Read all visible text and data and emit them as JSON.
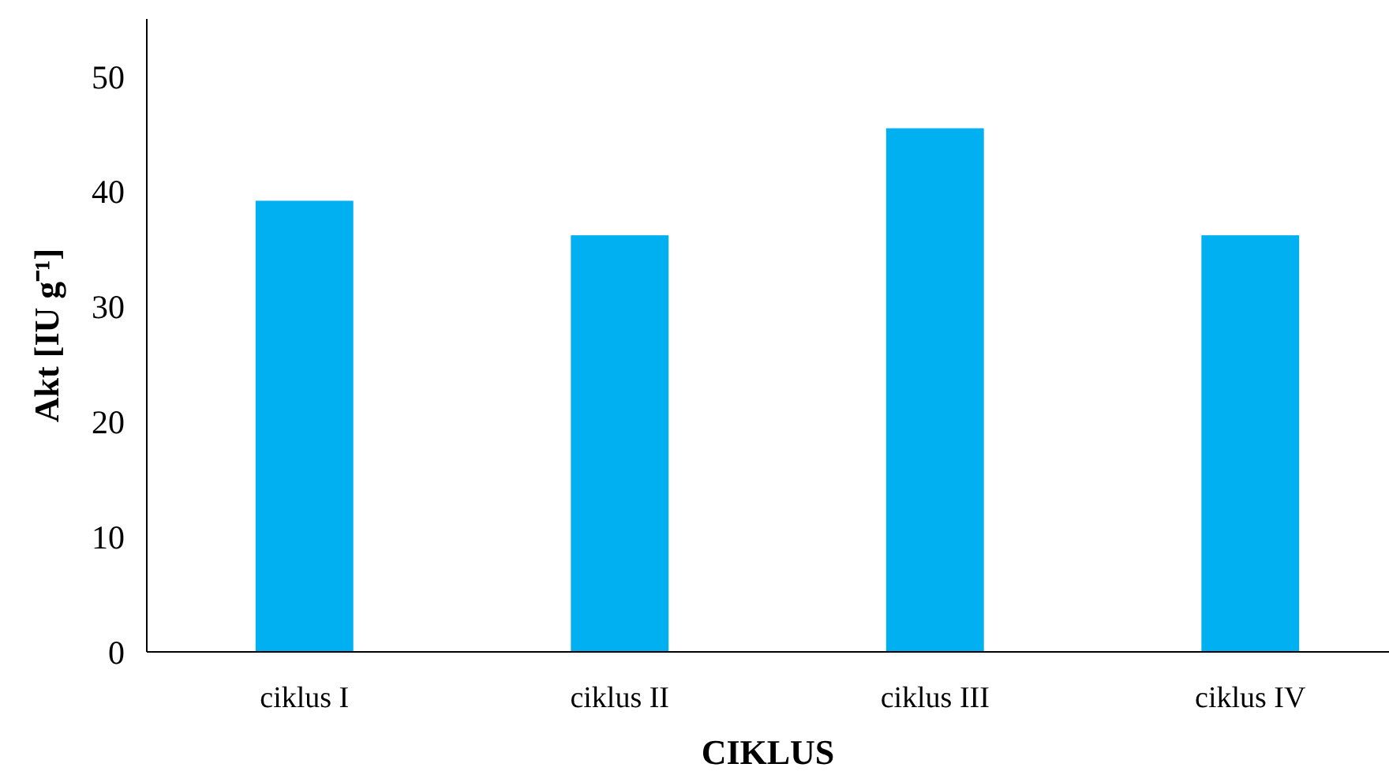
{
  "chart_data": {
    "type": "bar",
    "xlabel": "CIKLUS",
    "ylabel": "Akt [IU g⁻¹]",
    "categories": [
      "ciklus I",
      "ciklus II",
      "ciklus III",
      "ciklus IV"
    ],
    "values": [
      39.2,
      36.2,
      45.5,
      36.2
    ],
    "color": "#00b0f0",
    "ylim": [
      0,
      55
    ],
    "yticks": [
      0,
      10,
      20,
      30,
      40,
      50
    ],
    "grid": false
  }
}
